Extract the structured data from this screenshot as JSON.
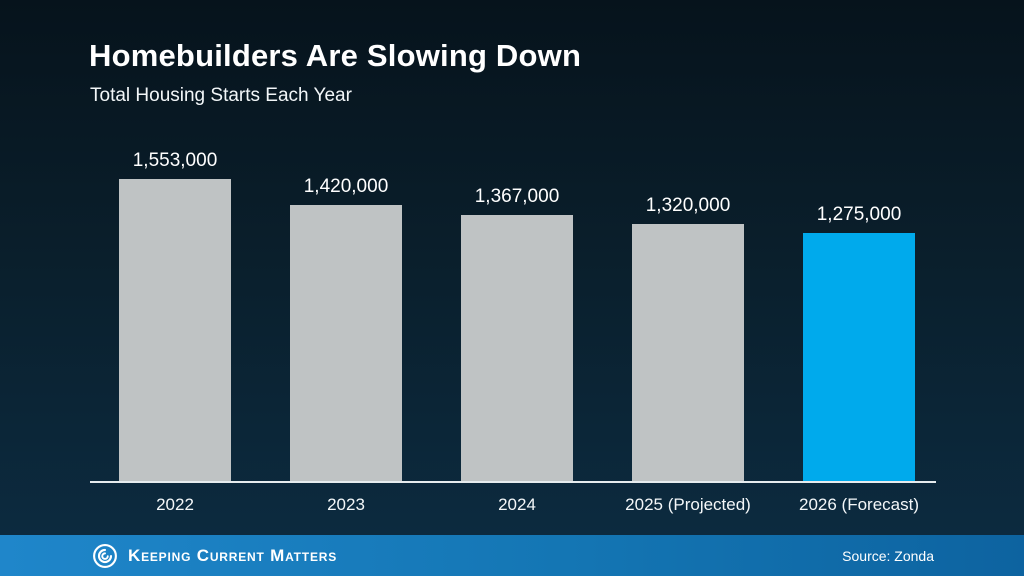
{
  "title": "Homebuilders Are Slowing Down",
  "subtitle": "Total Housing Starts Each Year",
  "chart_data": {
    "type": "bar",
    "categories": [
      "2022",
      "2023",
      "2024",
      "2025 (Projected)",
      "2026 (Forecast)"
    ],
    "values": [
      1553000,
      1420000,
      1367000,
      1320000,
      1275000
    ],
    "value_labels": [
      "1,553,000",
      "1,420,000",
      "1,367,000",
      "1,320,000",
      "1,275,000"
    ],
    "title": "Homebuilders Are Slowing Down",
    "subtitle": "Total Housing Starts Each Year",
    "xlabel": "",
    "ylabel": "",
    "ylim": [
      0,
      1600000
    ],
    "grid": false,
    "legend": false,
    "bar_colors": [
      "#bfc3c4",
      "#bfc3c4",
      "#bfc3c4",
      "#bfc3c4",
      "#00aaec"
    ],
    "highlight_index": 4
  },
  "footer": {
    "brand": "Keeping Current Matters",
    "source": "Source: Zonda",
    "logo_icon": "kcm-spiral-icon"
  },
  "colors": {
    "background_top": "#06131c",
    "background_bottom": "#0c2c42",
    "bar_gray": "#bfc3c4",
    "bar_highlight": "#00aaec",
    "footer_blue_left": "#1f86ca",
    "footer_blue_right": "#0d63a0",
    "axis_line": "#e6ebee",
    "text": "#ffffff"
  }
}
